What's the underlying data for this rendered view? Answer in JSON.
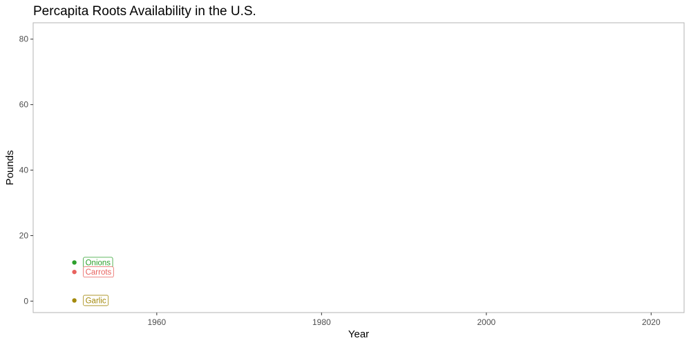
{
  "chart_data": {
    "type": "scatter",
    "title": "Percapita Roots Availability in the U.S.",
    "xlabel": "Year",
    "ylabel": "Pounds",
    "xlim": [
      1945,
      2024
    ],
    "ylim": [
      -3.5,
      85
    ],
    "x_ticks": [
      1960,
      1980,
      2000,
      2020
    ],
    "y_ticks": [
      0,
      20,
      40,
      60,
      80
    ],
    "grid": false,
    "legend": "none",
    "series": [
      {
        "name": "Onions",
        "color": "#2ca02c",
        "points": [
          {
            "x": 1950,
            "y": 11.8
          }
        ]
      },
      {
        "name": "Carrots",
        "color": "#e8625e",
        "points": [
          {
            "x": 1950,
            "y": 8.9
          }
        ]
      },
      {
        "name": "Garlic",
        "color": "#a3890c",
        "points": [
          {
            "x": 1950,
            "y": 0.2
          }
        ]
      }
    ]
  }
}
